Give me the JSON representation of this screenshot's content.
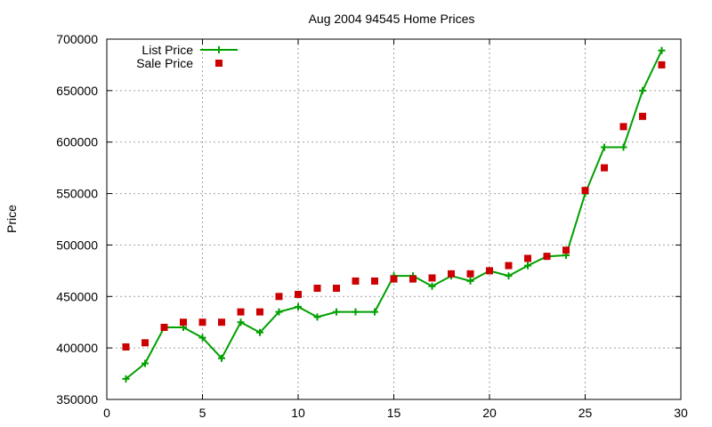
{
  "chart_data": {
    "type": "line",
    "title": "Aug 2004 94545 Home Prices",
    "xlabel": "",
    "ylabel": "Price",
    "xlim": [
      0,
      30
    ],
    "ylim": [
      350000,
      700000
    ],
    "xticks": [
      0,
      5,
      10,
      15,
      20,
      25,
      30
    ],
    "yticks": [
      350000,
      400000,
      450000,
      500000,
      550000,
      600000,
      650000,
      700000
    ],
    "grid": true,
    "legend_position": "top-left",
    "series": [
      {
        "name": "List Price",
        "style": "line-plus",
        "color": "#00a000",
        "x": [
          1,
          2,
          3,
          4,
          5,
          6,
          7,
          8,
          9,
          10,
          11,
          12,
          13,
          14,
          15,
          16,
          17,
          18,
          19,
          20,
          21,
          22,
          23,
          24,
          25,
          26,
          27,
          28,
          29
        ],
        "y": [
          370000,
          385000,
          420000,
          420000,
          410000,
          390000,
          425000,
          415000,
          435000,
          440000,
          430000,
          435000,
          435000,
          435000,
          470000,
          470000,
          460000,
          470000,
          465000,
          475000,
          470000,
          480000,
          489000,
          490000,
          550000,
          595000,
          595000,
          650000,
          689000
        ]
      },
      {
        "name": "Sale Price",
        "style": "square-points",
        "color": "#cc0000",
        "x": [
          1,
          2,
          3,
          4,
          5,
          6,
          7,
          8,
          9,
          10,
          11,
          12,
          13,
          14,
          15,
          16,
          17,
          18,
          19,
          20,
          21,
          22,
          23,
          24,
          25,
          26,
          27,
          28,
          29
        ],
        "y": [
          401000,
          405000,
          420000,
          425000,
          425000,
          425000,
          435000,
          435000,
          450000,
          452000,
          458000,
          458000,
          465000,
          465000,
          467000,
          467000,
          468000,
          472000,
          472000,
          475000,
          480000,
          487000,
          489000,
          495000,
          553000,
          575000,
          615000,
          625000,
          675000
        ]
      }
    ]
  }
}
